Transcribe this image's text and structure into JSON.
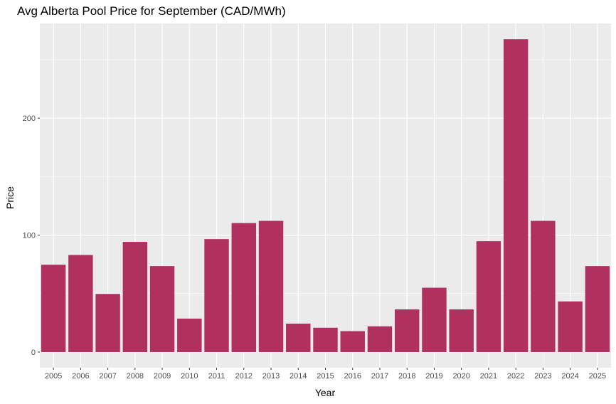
{
  "chart_data": {
    "type": "bar",
    "title": "Avg Alberta Pool Price for September (CAD/MWh)",
    "xlabel": "Year",
    "ylabel": "Price",
    "categories": [
      "2005",
      "2006",
      "2007",
      "2008",
      "2009",
      "2010",
      "2011",
      "2012",
      "2013",
      "2014",
      "2015",
      "2016",
      "2017",
      "2018",
      "2019",
      "2020",
      "2021",
      "2022",
      "2023",
      "2024",
      "2025"
    ],
    "values": [
      74.7,
      83.0,
      49.7,
      94.2,
      73.5,
      28.6,
      96.6,
      110.3,
      112.2,
      24.3,
      20.8,
      17.9,
      22.0,
      36.5,
      55.0,
      36.5,
      94.8,
      267.5,
      112.2,
      43.3,
      73.5
    ],
    "ylim": [
      -13.4,
      281.0
    ],
    "yticks": [
      0,
      100,
      200
    ],
    "ytick_labels": [
      "0",
      "100",
      "200"
    ],
    "bar_color": "#B03060",
    "panel_color": "#EBEBEB",
    "grid": true
  }
}
